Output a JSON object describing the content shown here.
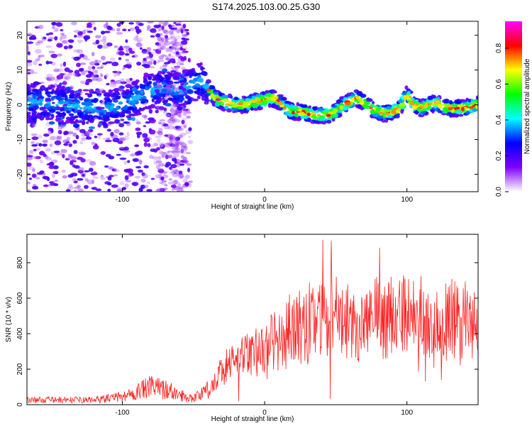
{
  "title": "S174.2025.103.00.25.G30",
  "chart_data": [
    {
      "type": "heatmap",
      "xlabel": "Height of straight line (km)",
      "ylabel": "Frequency (Hz)",
      "xlim": [
        -167,
        150
      ],
      "ylim": [
        -25,
        24
      ],
      "xticks": [
        -100,
        0,
        100
      ],
      "yticks": [
        -20,
        -10,
        0,
        10,
        20
      ],
      "colorbar": {
        "label": "Normalized spectral amplitude",
        "range": [
          0,
          0.95
        ],
        "ticks": [
          0.0,
          0.2,
          0.4,
          0.6,
          0.8
        ],
        "colors": [
          "#ffffff",
          "#8000ff",
          "#0000ff",
          "#00ffff",
          "#00ff00",
          "#ffff00",
          "#ff0000",
          "#ff00ff"
        ]
      },
      "ridge": {
        "x": [
          -160,
          -140,
          -120,
          -110,
          -100,
          -90,
          -80,
          -70,
          -60,
          -50,
          -45,
          -40,
          -35,
          -30,
          -25,
          -20,
          -15,
          -10,
          -5,
          0,
          5,
          10,
          15,
          20,
          25,
          30,
          35,
          40,
          45,
          50,
          55,
          60,
          65,
          70,
          75,
          80,
          85,
          90,
          95,
          100,
          105,
          110,
          115,
          120,
          125,
          130,
          135,
          140,
          145,
          150
        ],
        "y": [
          1,
          0,
          -1,
          -1,
          0,
          2,
          4,
          5,
          4,
          6,
          7,
          5,
          2,
          1,
          0.5,
          0,
          0,
          0.5,
          1,
          1.5,
          2,
          1,
          -1,
          -2,
          -2,
          -2.5,
          -3,
          -3,
          -3,
          -2,
          0,
          1,
          2,
          0.5,
          -1,
          -2,
          -2.5,
          -2,
          -1,
          3,
          0,
          -1,
          0,
          0.5,
          -0.5,
          -1,
          -1,
          -1,
          -0.5,
          0
        ]
      }
    },
    {
      "type": "line",
      "xlabel": "Height of straight line (km)",
      "ylabel": "SNR (10 * v/v)",
      "xlim": [
        -167,
        150
      ],
      "ylim": [
        0,
        960
      ],
      "xticks": [
        -100,
        0,
        100
      ],
      "yticks": [
        0,
        200,
        400,
        600,
        800
      ],
      "color": "#ff2020",
      "envelope": {
        "x": [
          -167,
          -120,
          -100,
          -90,
          -80,
          -70,
          -60,
          -50,
          -40,
          -35,
          -30,
          -25,
          -20,
          -10,
          0,
          10,
          20,
          30,
          40,
          50,
          60,
          70,
          80,
          90,
          100,
          110,
          120,
          130,
          140,
          150
        ],
        "y": [
          30,
          30,
          50,
          80,
          110,
          100,
          60,
          40,
          90,
          150,
          220,
          260,
          280,
          320,
          380,
          420,
          460,
          540,
          560,
          560,
          540,
          520,
          560,
          560,
          560,
          560,
          540,
          540,
          540,
          520
        ]
      }
    }
  ]
}
